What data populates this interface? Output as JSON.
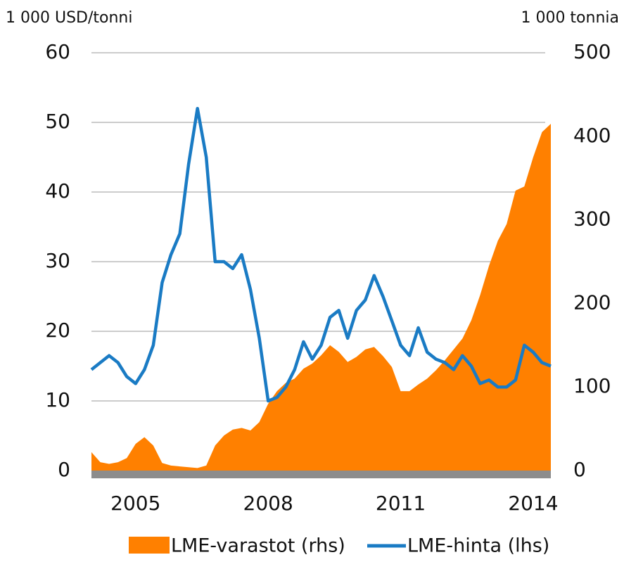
{
  "chart_data": {
    "type": "area-line",
    "y_label": "1 000 USD/tonni",
    "y2_label": "1 000 tonnia",
    "xlim": [
      2004,
      2014.4
    ],
    "xticks": [
      2005,
      2008,
      2011,
      2014
    ],
    "ylim": [
      0,
      60
    ],
    "yticks": [
      0,
      10,
      20,
      30,
      40,
      50,
      60
    ],
    "y2lim": [
      0,
      500
    ],
    "y2ticks": [
      0,
      100,
      200,
      300,
      400,
      500
    ],
    "grid": true,
    "x": [
      2004.0,
      2004.2,
      2004.4,
      2004.6,
      2004.8,
      2005.0,
      2005.2,
      2005.4,
      2005.6,
      2005.8,
      2006.0,
      2006.2,
      2006.4,
      2006.6,
      2006.8,
      2007.0,
      2007.2,
      2007.4,
      2007.6,
      2007.8,
      2008.0,
      2008.2,
      2008.4,
      2008.6,
      2008.8,
      2009.0,
      2009.2,
      2009.4,
      2009.6,
      2009.8,
      2010.0,
      2010.2,
      2010.4,
      2010.6,
      2010.8,
      2011.0,
      2011.2,
      2011.4,
      2011.6,
      2011.8,
      2012.0,
      2012.2,
      2012.4,
      2012.6,
      2012.8,
      2013.0,
      2013.2,
      2013.4,
      2013.6,
      2013.8,
      2014.0,
      2014.2,
      2014.4
    ],
    "series": [
      {
        "name": "LME-varastot (rhs)",
        "color": "#ff8000",
        "axis": "y2",
        "kind": "area",
        "values": [
          22,
          10,
          8,
          10,
          15,
          32,
          40,
          30,
          9,
          6,
          5,
          4,
          3,
          6,
          30,
          42,
          49,
          51,
          48,
          58,
          80,
          95,
          105,
          110,
          122,
          128,
          138,
          150,
          142,
          130,
          136,
          145,
          148,
          137,
          124,
          95,
          95,
          103,
          110,
          120,
          132,
          145,
          158,
          180,
          210,
          245,
          275,
          295,
          335,
          340,
          375,
          405,
          415
        ]
      },
      {
        "name": "LME-hinta (lhs)",
        "color": "#1a7bc4",
        "kind": "line",
        "values": [
          14.5,
          15.5,
          16.5,
          15.5,
          13.5,
          12.5,
          14.5,
          18,
          27,
          31,
          34,
          44,
          52,
          45,
          30,
          30,
          29,
          31,
          26,
          19,
          10,
          10.5,
          12,
          14.5,
          18.5,
          16,
          18,
          22,
          23,
          19,
          23,
          24.5,
          28,
          25,
          21.5,
          18,
          16.5,
          20.5,
          17,
          16,
          15.5,
          14.5,
          16.5,
          15,
          12.5,
          13,
          12,
          12,
          13,
          18,
          17,
          15.5,
          15
        ]
      }
    ]
  }
}
